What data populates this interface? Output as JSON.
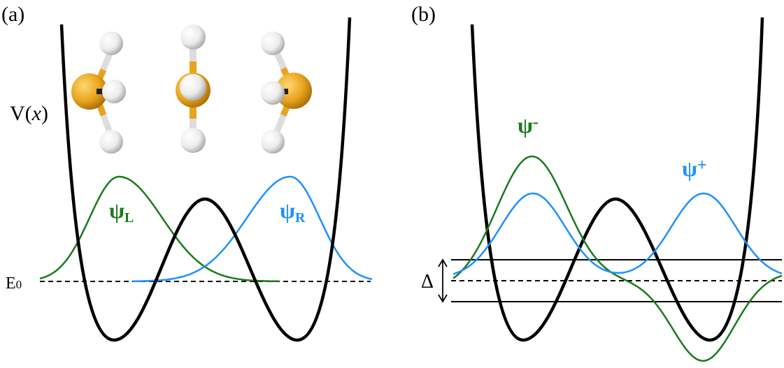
{
  "panel_a": {
    "label": "(a)",
    "potential_label": "V(",
    "potential_var": "x",
    "potential_close": ")",
    "energy_label": "E",
    "energy_sub": "0",
    "psi_left": {
      "symbol": "ψ",
      "sub": "L",
      "color": "#1a7a1a"
    },
    "psi_right": {
      "symbol": "ψ",
      "sub": "R",
      "color": "#1e90ff"
    },
    "molecule_colors": {
      "central_atom": "#e8a420",
      "hydrogen": "#f2f2f2"
    }
  },
  "panel_b": {
    "label": "(b)",
    "splitting_label": "Δ",
    "psi_minus": {
      "symbol": "ψ",
      "sign": "-",
      "color": "#1a7a1a"
    },
    "psi_plus": {
      "symbol": "ψ",
      "sign": "+",
      "color": "#1e90ff"
    }
  },
  "colors": {
    "potential": "#000000"
  }
}
